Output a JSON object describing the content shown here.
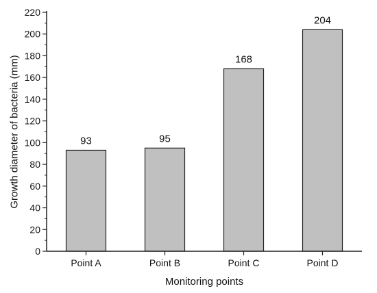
{
  "chart_data": {
    "type": "bar",
    "title": "",
    "xlabel": "Monitoring points",
    "ylabel": "Growth diameter of bacteria (mm)",
    "categories": [
      "Point A",
      "Point B",
      "Point C",
      "Point D"
    ],
    "values": [
      93,
      95,
      168,
      204
    ],
    "data_labels": [
      "93",
      "95",
      "168",
      "204"
    ],
    "ylim": [
      0,
      220
    ],
    "yticks": [
      0,
      20,
      40,
      60,
      80,
      100,
      120,
      140,
      160,
      180,
      200,
      220
    ],
    "grid": false,
    "legend": "none",
    "colors": {
      "bar_fill": "#c0c0c0",
      "bar_stroke": "#222222",
      "axis": "#222222",
      "text": "#111111"
    }
  }
}
